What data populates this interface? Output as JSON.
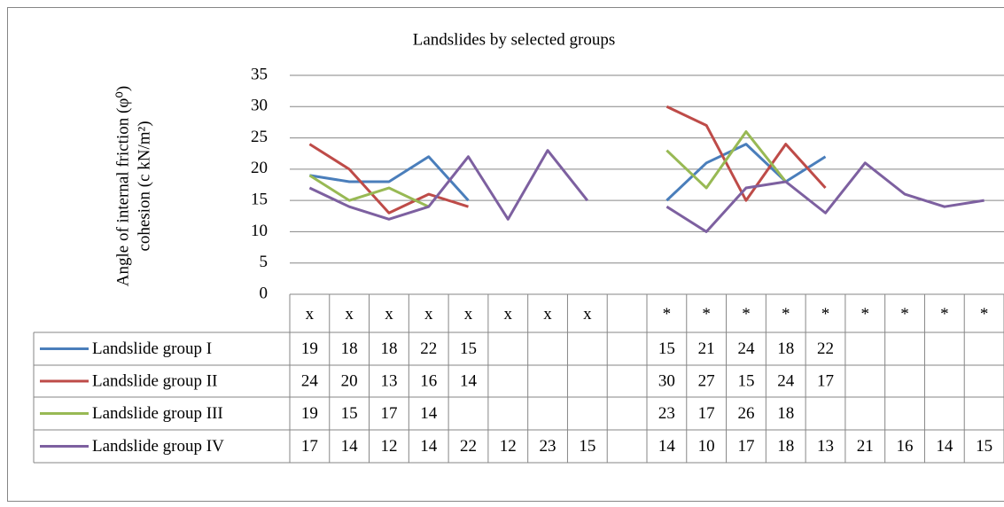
{
  "chart_data": {
    "type": "line",
    "title": "Landslides by selected groups",
    "ylabel": [
      "Angle of internal friction (φ⁰)",
      "cohesion (c kN/m²)"
    ],
    "categories": [
      "x",
      "x",
      "x",
      "x",
      "x",
      "x",
      "x",
      "x",
      null,
      "*",
      "*",
      "*",
      "*",
      "*",
      "*",
      "*",
      "*",
      "*"
    ],
    "series": [
      {
        "name": "Landslide group I",
        "color": "#4a7ebb",
        "values": [
          19,
          18,
          18,
          22,
          15,
          null,
          null,
          null,
          null,
          15,
          21,
          24,
          18,
          22,
          null,
          null,
          null,
          null
        ]
      },
      {
        "name": "Landslide group II",
        "color": "#be4b48",
        "values": [
          24,
          20,
          13,
          16,
          14,
          null,
          null,
          null,
          null,
          30,
          27,
          15,
          24,
          17,
          null,
          null,
          null,
          null
        ]
      },
      {
        "name": "Landslide group III",
        "color": "#98b954",
        "values": [
          19,
          15,
          17,
          14,
          null,
          null,
          null,
          null,
          null,
          23,
          17,
          26,
          18,
          null,
          null,
          null,
          null,
          null
        ]
      },
      {
        "name": "Landslide group IV",
        "color": "#7d60a0",
        "values": [
          17,
          14,
          12,
          14,
          22,
          12,
          23,
          15,
          null,
          14,
          10,
          17,
          18,
          13,
          21,
          16,
          14,
          15
        ]
      }
    ],
    "ylim": [
      0,
      35
    ],
    "yticks": [
      0,
      5,
      10,
      15,
      20,
      25,
      30,
      35
    ],
    "grid": true,
    "data_table": true
  }
}
